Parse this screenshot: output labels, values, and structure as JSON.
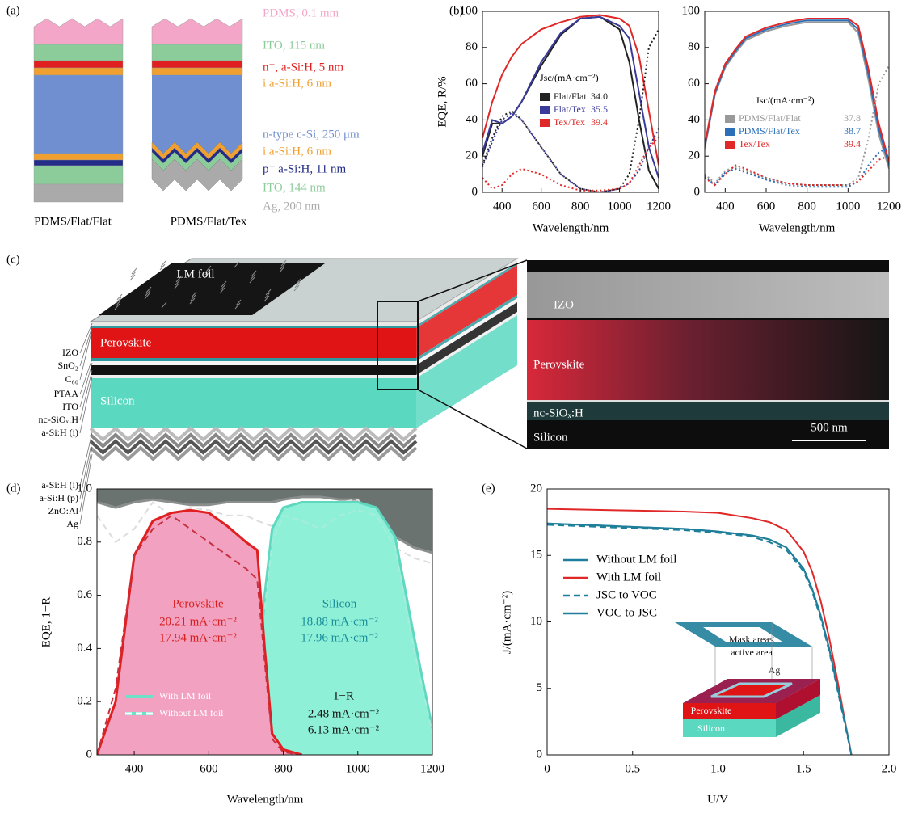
{
  "panel_labels": [
    "(a)",
    "(b)",
    "(c)",
    "(d)",
    "(e)"
  ],
  "panel_a": {
    "layers": [
      {
        "label": "PDMS, 0.1 mm",
        "color": "#f4a6c8"
      },
      {
        "label": "ITO, 115 nm",
        "color": "#8ccc9a"
      },
      {
        "label": "n⁺, a-Si:H, 5 nm",
        "color": "#e02020"
      },
      {
        "label": "i a-Si:H, 6 nm",
        "color": "#f0a030"
      },
      {
        "label": "n-type c-Si, 250 μm",
        "color": "#6f8fd0"
      },
      {
        "label": "i a-Si:H, 6 nm",
        "color": "#f0a030"
      },
      {
        "label": "p⁺ a-Si:H, 11 nm",
        "color": "#232c86"
      },
      {
        "label": "ITO, 144 nm",
        "color": "#8ccc9a"
      },
      {
        "label": "Ag, 200 nm",
        "color": "#aaaaaa"
      }
    ],
    "structures": [
      "PDMS/Flat/Flat",
      "PDMS/Flat/Tex"
    ]
  },
  "panel_c": {
    "foil_label": "LM foil",
    "layer_labels": [
      "IZO",
      "SnO₂",
      "C₆₀",
      "PTAA",
      "ITO",
      "nc-SiOₓ:H",
      "a-Si:H (i)",
      "a-Si:H (i)",
      "a-Si:H (p)",
      "ZnO:Al",
      "Ag"
    ],
    "perovskite": "Perovskite",
    "silicon": "Silicon",
    "sem_labels": [
      "IZO",
      "Perovskite",
      "nc-SiOₓ:H",
      "Silicon"
    ],
    "scale_bar": "500 nm"
  },
  "chart_data": [
    {
      "type": "line",
      "ylabel": "EQE, R/%",
      "xlabel": "Wavelength/nm",
      "legend_title": "Jsc/(mA·cm⁻²)",
      "x": [
        300,
        350,
        400,
        450,
        500,
        600,
        700,
        800,
        900,
        1000,
        1050,
        1100,
        1150,
        1200
      ],
      "xlim": [
        300,
        1200
      ],
      "ylim": [
        0,
        100
      ],
      "xticks": [
        400,
        600,
        800,
        1000,
        1200
      ],
      "yticks": [
        0,
        20,
        40,
        60,
        80,
        100
      ],
      "series": [
        {
          "name": "Flat/Flat",
          "jsc": "34.0",
          "color": "#222222",
          "style": "solid",
          "values": [
            20,
            38,
            38,
            42,
            50,
            70,
            87,
            96,
            97,
            90,
            72,
            40,
            12,
            2
          ]
        },
        {
          "name": "Flat/Tex",
          "jsc": "35.5",
          "color": "#3a3a9a",
          "style": "solid",
          "values": [
            22,
            40,
            38,
            42,
            50,
            72,
            88,
            96,
            97,
            92,
            85,
            55,
            25,
            8
          ]
        },
        {
          "name": "Tex/Tex",
          "jsc": "39.4",
          "color": "#e02828",
          "style": "solid",
          "values": [
            30,
            50,
            65,
            75,
            82,
            90,
            94,
            97,
            98,
            96,
            92,
            75,
            45,
            15
          ]
        },
        {
          "color": "#222222",
          "style": "dotted",
          "values": [
            15,
            30,
            42,
            45,
            40,
            25,
            10,
            2,
            0,
            2,
            10,
            40,
            80,
            90
          ]
        },
        {
          "color": "#3a3a9a",
          "style": "dotted",
          "values": [
            14,
            28,
            40,
            44,
            40,
            25,
            10,
            2,
            0,
            2,
            5,
            12,
            25,
            35
          ]
        },
        {
          "color": "#e02828",
          "style": "dotted",
          "values": [
            8,
            2,
            4,
            10,
            13,
            10,
            4,
            1,
            1,
            2,
            5,
            15,
            25,
            30
          ]
        }
      ]
    },
    {
      "type": "line",
      "xlabel": "Wavelength/nm",
      "legend_title": "Jsc/(mA·cm⁻²)",
      "x": [
        300,
        350,
        400,
        450,
        500,
        600,
        700,
        800,
        900,
        1000,
        1050,
        1100,
        1150,
        1200
      ],
      "xlim": [
        300,
        1200
      ],
      "ylim": [
        0,
        100
      ],
      "xticks": [
        400,
        600,
        800,
        1000,
        1200
      ],
      "yticks": [
        0,
        20,
        40,
        60,
        80,
        100
      ],
      "series": [
        {
          "name": "PDMS/Flat/Flat",
          "jsc": "37.8",
          "color": "#999999",
          "style": "solid",
          "values": [
            24,
            54,
            69,
            77,
            84,
            89,
            92,
            94,
            94,
            94,
            88,
            62,
            32,
            13
          ]
        },
        {
          "name": "PDMS/Flat/Tex",
          "jsc": "38.7",
          "color": "#2a6fb8",
          "style": "solid",
          "values": [
            25,
            55,
            70,
            78,
            85,
            90,
            93,
            95,
            95,
            95,
            90,
            65,
            35,
            15
          ]
        },
        {
          "name": "Tex/Tex",
          "jsc": "39.4",
          "color": "#e02828",
          "style": "solid",
          "values": [
            26,
            56,
            71,
            79,
            86,
            91,
            94,
            96,
            96,
            96,
            92,
            68,
            38,
            17
          ]
        },
        {
          "color": "#999999",
          "style": "dotted",
          "values": [
            10,
            5,
            12,
            14,
            12,
            8,
            5,
            4,
            4,
            4,
            8,
            30,
            60,
            70
          ]
        },
        {
          "color": "#2a6fb8",
          "style": "dotted",
          "values": [
            9,
            4,
            11,
            13,
            11,
            7,
            4,
            3,
            3,
            3,
            6,
            15,
            22,
            25
          ]
        },
        {
          "color": "#e02828",
          "style": "dotted",
          "values": [
            8,
            4,
            10,
            15,
            13,
            8,
            5,
            4,
            4,
            4,
            6,
            12,
            18,
            20
          ]
        }
      ]
    },
    {
      "type": "line",
      "ylabel": "EQE, 1−R",
      "xlabel": "Wavelength/nm",
      "x": [
        300,
        350,
        400,
        450,
        500,
        550,
        600,
        650,
        700,
        730,
        750,
        770,
        800,
        850,
        900,
        950,
        1000,
        1050,
        1100,
        1150,
        1200
      ],
      "xlim": [
        300,
        1200
      ],
      "ylim": [
        0,
        1
      ],
      "xticks": [
        400,
        600,
        800,
        1000,
        1200
      ],
      "yticks": [
        0,
        0.2,
        0.4,
        0.6,
        0.8,
        {
          "value": 1,
          "label": "1.0"
        }
      ],
      "series": [
        {
          "color": "#8a8f8d",
          "fill": "#6b7370",
          "fill_to": "top",
          "style": "solid",
          "values": [
            0.95,
            0.93,
            0.95,
            0.96,
            0.95,
            0.94,
            0.94,
            0.95,
            0.95,
            0.95,
            0.95,
            0.95,
            0.96,
            0.97,
            0.97,
            0.96,
            0.96,
            0.88,
            0.82,
            0.78,
            0.76
          ]
        },
        {
          "color": "#dddddd",
          "style": "dashed",
          "values": [
            0.9,
            0.8,
            0.85,
            0.95,
            0.9,
            0.93,
            0.92,
            0.9,
            0.9,
            0.88,
            0.87,
            0.86,
            0.87,
            0.9,
            0.92,
            0.95,
            0.96,
            0.85,
            0.78,
            0.74,
            0.72
          ]
        },
        {
          "color": "#5fd8c0",
          "fill": "#8ff0d8",
          "fill_to": "bottom",
          "style": "solid",
          "values": [
            null,
            null,
            null,
            null,
            0,
            0.02,
            0.05,
            0.08,
            0.1,
            0.2,
            0.6,
            0.85,
            0.93,
            0.95,
            0.95,
            0.95,
            0.95,
            0.93,
            0.82,
            0.45,
            0.1
          ]
        },
        {
          "color": "#a8ecdc",
          "style": "dashed",
          "values": [
            null,
            null,
            null,
            null,
            null,
            null,
            null,
            null,
            null,
            null,
            0.55,
            0.8,
            0.9,
            0.88,
            0.85,
            0.9,
            0.92,
            0.9,
            0.78,
            0.4,
            0.08
          ]
        },
        {
          "color": "#e02020",
          "fill": "#f2a2c0",
          "fill_to": "bottom",
          "style": "solid",
          "values": [
            0,
            0.2,
            0.75,
            0.88,
            0.91,
            0.92,
            0.91,
            0.86,
            0.8,
            0.77,
            0.4,
            0.08,
            0.02,
            0,
            null,
            null,
            null,
            null,
            null,
            null,
            null
          ]
        },
        {
          "color": "#c83040",
          "style": "dashed",
          "values": [
            0,
            0.25,
            0.75,
            0.85,
            0.9,
            0.85,
            0.8,
            0.75,
            0.7,
            0.66,
            0.35,
            0.06,
            0.01,
            0,
            null,
            null,
            null,
            null,
            null,
            null,
            null
          ]
        }
      ],
      "legend": [
        {
          "label": "With LM foil",
          "color": "#6fe0c8",
          "style": "solid"
        },
        {
          "label": "Without LM foil",
          "color": "#ffffff",
          "style": "dashed"
        }
      ],
      "annotations": [
        {
          "text": "Perovskite",
          "color": "#d81e1e"
        },
        {
          "text": "20.21 mA·cm⁻²",
          "color": "#d81e1e"
        },
        {
          "text": "17.94 mA·cm⁻²",
          "color": "#d81e1e"
        },
        {
          "text": "Silicon",
          "color": "#1a8f9a"
        },
        {
          "text": "18.88 mA·cm⁻²",
          "color": "#1a8f9a"
        },
        {
          "text": "17.96 mA·cm⁻²",
          "color": "#1a8f9a"
        },
        {
          "text": "1−R",
          "color": "#111111"
        },
        {
          "text": "2.48 mA·cm⁻²",
          "color": "#111111"
        },
        {
          "text": "6.13 mA·cm⁻²",
          "color": "#111111"
        }
      ]
    },
    {
      "type": "line",
      "ylabel": "J/(mA·cm⁻²)",
      "xlabel": "U/V",
      "x": [
        0,
        0.2,
        0.4,
        0.6,
        0.8,
        1.0,
        1.2,
        1.3,
        1.4,
        1.5,
        1.55,
        1.6,
        1.65,
        1.7,
        1.75,
        1.78
      ],
      "xlim": [
        0,
        2
      ],
      "ylim": [
        0,
        20
      ],
      "xticks": [
        0,
        0.5,
        {
          "value": 1,
          "label": "1.0"
        },
        1.5,
        {
          "value": 2,
          "label": "2.0"
        }
      ],
      "yticks": [
        0,
        5,
        10,
        15,
        20
      ],
      "series": [
        {
          "name": "Without LM foil",
          "color": "#1f7f9a",
          "style": "solid",
          "values": [
            17.4,
            17.3,
            17.2,
            17.1,
            17.0,
            16.8,
            16.5,
            16.2,
            15.6,
            14.0,
            12.5,
            10.5,
            8,
            5,
            2,
            0
          ]
        },
        {
          "name": "With LM foil",
          "color": "#e02828",
          "style": "solid",
          "values": [
            18.5,
            18.45,
            18.4,
            18.35,
            18.3,
            18.2,
            17.8,
            17.5,
            16.9,
            15.3,
            13.8,
            11.6,
            8.8,
            5.5,
            2,
            0
          ]
        },
        {
          "name": "JSC to VOC",
          "color": "#1f7f9a",
          "style": "dashed",
          "values": [
            17.3,
            17.2,
            17.1,
            17.0,
            16.9,
            16.7,
            16.4,
            16.0,
            15.4,
            13.8,
            12.3,
            10.3,
            7.8,
            4.8,
            1.8,
            0
          ]
        },
        {
          "name": "VOC to JSC",
          "color": "#1f7f9a",
          "style": "solid",
          "values": [
            17.4,
            17.3,
            17.2,
            17.1,
            17.0,
            16.8,
            16.5,
            16.2,
            15.6,
            14.0,
            12.5,
            10.5,
            8,
            5,
            2,
            0
          ]
        }
      ],
      "annotations": [
        {
          "text": "Mask area≤",
          "color": "#111111"
        },
        {
          "text": "active area",
          "color": "#111111"
        },
        {
          "text": "Ag",
          "color": "#333333"
        },
        {
          "text": "Perovskite",
          "color": "#ffffff"
        },
        {
          "text": "Silicon",
          "color": "#ffffff"
        }
      ]
    }
  ]
}
